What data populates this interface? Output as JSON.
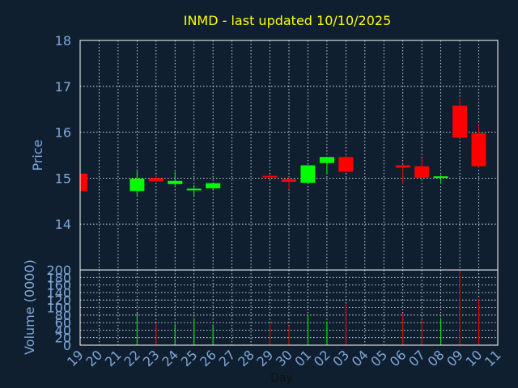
{
  "colors": {
    "background": "#0f1f30",
    "frame": "#ffffff",
    "grid": "#ffffff",
    "title": "#ffff00",
    "axis_text": "#7fa6d6",
    "up": "#00ff00",
    "down": "#ff0000"
  },
  "chart_data": [
    {
      "type": "candlestick",
      "title": "INMD - last updated 10/10/2025",
      "ylabel": "Price",
      "xlabel": "",
      "ylim": [
        13.0,
        18.0
      ],
      "yticks": [
        14,
        15,
        16,
        17,
        18
      ],
      "grid": true,
      "categories": [
        "19",
        "20",
        "21",
        "22",
        "23",
        "24",
        "25",
        "26",
        "27",
        "28",
        "29",
        "30",
        "01",
        "02",
        "03",
        "04",
        "05",
        "06",
        "07",
        "08",
        "09",
        "10",
        "11"
      ],
      "candles": [
        {
          "day": "19",
          "open": 15.1,
          "close": 14.72,
          "high": 15.1,
          "low": 14.72
        },
        {
          "day": "22",
          "open": 14.72,
          "close": 14.99,
          "high": 15.19,
          "low": 14.6
        },
        {
          "day": "23",
          "open": 15.0,
          "close": 14.93,
          "high": 15.07,
          "low": 14.93
        },
        {
          "day": "24",
          "open": 14.87,
          "close": 14.94,
          "high": 15.14,
          "low": 14.82
        },
        {
          "day": "25",
          "open": 14.76,
          "close": 14.77,
          "high": 14.85,
          "low": 14.6
        },
        {
          "day": "26",
          "open": 14.78,
          "close": 14.89,
          "high": 14.89,
          "low": 14.76
        },
        {
          "day": "29",
          "open": 15.05,
          "close": 15.02,
          "high": 15.08,
          "low": 14.99
        },
        {
          "day": "30",
          "open": 14.98,
          "close": 14.92,
          "high": 15.03,
          "low": 14.75
        },
        {
          "day": "01",
          "open": 14.9,
          "close": 15.28,
          "high": 15.28,
          "low": 14.9
        },
        {
          "day": "02",
          "open": 15.33,
          "close": 15.46,
          "high": 15.47,
          "low": 15.1
        },
        {
          "day": "03",
          "open": 15.46,
          "close": 15.14,
          "high": 15.49,
          "low": 15.12
        },
        {
          "day": "06",
          "open": 15.28,
          "close": 15.23,
          "high": 15.29,
          "low": 14.88
        },
        {
          "day": "07",
          "open": 15.26,
          "close": 15.01,
          "high": 15.45,
          "low": 14.99
        },
        {
          "day": "08",
          "open": 15.01,
          "close": 15.04,
          "high": 15.07,
          "low": 14.89
        },
        {
          "day": "09",
          "open": 16.58,
          "close": 15.88,
          "high": 16.75,
          "low": 15.87
        },
        {
          "day": "10",
          "open": 15.98,
          "close": 15.26,
          "high": 16.16,
          "low": 15.23
        }
      ]
    },
    {
      "type": "bar",
      "ylabel": "Volume (0000)",
      "xlabel": "Day",
      "ylim": [
        0,
        200
      ],
      "yticks": [
        0,
        20,
        40,
        60,
        80,
        100,
        120,
        140,
        160,
        180,
        200
      ],
      "grid": true,
      "categories": [
        "19",
        "20",
        "21",
        "22",
        "23",
        "24",
        "25",
        "26",
        "27",
        "28",
        "29",
        "30",
        "01",
        "02",
        "03",
        "04",
        "05",
        "06",
        "07",
        "08",
        "09",
        "10",
        "11"
      ],
      "values": [
        {
          "day": "19",
          "volume": 0,
          "direction": "down"
        },
        {
          "day": "22",
          "volume": 85,
          "direction": "up"
        },
        {
          "day": "23",
          "volume": 58,
          "direction": "down"
        },
        {
          "day": "24",
          "volume": 57,
          "direction": "up"
        },
        {
          "day": "25",
          "volume": 72,
          "direction": "up"
        },
        {
          "day": "26",
          "volume": 55,
          "direction": "up"
        },
        {
          "day": "29",
          "volume": 57,
          "direction": "down"
        },
        {
          "day": "30",
          "volume": 52,
          "direction": "down"
        },
        {
          "day": "01",
          "volume": 81,
          "direction": "up"
        },
        {
          "day": "02",
          "volume": 63,
          "direction": "up"
        },
        {
          "day": "03",
          "volume": 109,
          "direction": "down"
        },
        {
          "day": "06",
          "volume": 85,
          "direction": "down"
        },
        {
          "day": "07",
          "volume": 68,
          "direction": "down"
        },
        {
          "day": "08",
          "volume": 72,
          "direction": "up"
        },
        {
          "day": "09",
          "volume": 200,
          "direction": "down"
        },
        {
          "day": "10",
          "volume": 122,
          "direction": "down"
        }
      ]
    }
  ]
}
